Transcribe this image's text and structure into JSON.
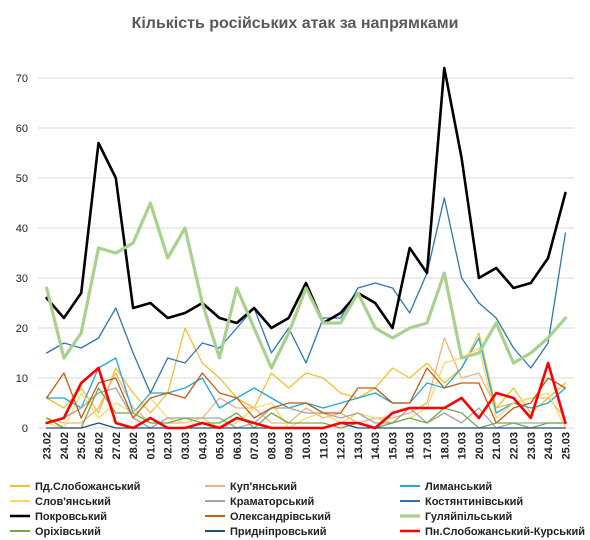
{
  "chart_data": {
    "type": "line",
    "title": "Кількість російських атак за напрямками",
    "xlabel": "",
    "ylabel": "",
    "ylim": [
      0,
      75
    ],
    "yticks": [
      0,
      10,
      20,
      30,
      40,
      50,
      60,
      70
    ],
    "grid": "horizontal",
    "legend_position": "bottom",
    "x": [
      "23.02",
      "24.02",
      "25.02",
      "26.02",
      "27.02",
      "28.02",
      "01.03",
      "02.03",
      "03.03",
      "04.03",
      "05.03",
      "06.03",
      "07.03",
      "08.03",
      "09.03",
      "10.03",
      "11.03",
      "12.03",
      "13.03",
      "14.03",
      "15.03",
      "16.03",
      "17.03",
      "18.03",
      "19.03",
      "20.03",
      "21.03",
      "22.03",
      "23.03",
      "24.03",
      "25.03"
    ],
    "series": [
      {
        "name": "Пд.Слобожанський",
        "color": "#f2c22e",
        "width": 1.3,
        "values": [
          6,
          4,
          8,
          3,
          12,
          7,
          3,
          7,
          20,
          13,
          10,
          6,
          4,
          11,
          8,
          11,
          10,
          7,
          6,
          8,
          12,
          10,
          13,
          9,
          12,
          19,
          4,
          8,
          3,
          6,
          9
        ]
      },
      {
        "name": "Куп'янський",
        "color": "#f2b27a",
        "width": 1.3,
        "values": [
          2,
          1,
          1,
          4,
          11,
          4,
          1,
          1,
          1,
          2,
          6,
          4,
          4,
          1,
          1,
          4,
          2,
          3,
          1,
          2,
          2,
          3,
          5,
          18,
          10,
          11,
          4,
          5,
          6,
          6,
          2
        ]
      },
      {
        "name": "Лиманський",
        "color": "#1fa9e0",
        "width": 1.3,
        "values": [
          6,
          6,
          4,
          12,
          14,
          3,
          7,
          7,
          8,
          10,
          4,
          6,
          8,
          6,
          4,
          5,
          4,
          5,
          6,
          7,
          5,
          5,
          9,
          8,
          12,
          18,
          3,
          5,
          4,
          5,
          8
        ]
      },
      {
        "name": "Слов'янський",
        "color": "#ffd966",
        "width": 1.3,
        "values": [
          1,
          0,
          7,
          2,
          5,
          3,
          6,
          2,
          1,
          2,
          0,
          1,
          4,
          5,
          0,
          2,
          3,
          1,
          3,
          2,
          1,
          2,
          4,
          13,
          14,
          16,
          2,
          5,
          6,
          7,
          0
        ]
      },
      {
        "name": "Краматорський",
        "color": "#a5a5a5",
        "width": 1.3,
        "values": [
          1,
          2,
          4,
          7,
          8,
          2,
          0,
          2,
          2,
          2,
          2,
          0,
          1,
          4,
          4,
          3,
          3,
          2,
          3,
          1,
          1,
          4,
          1,
          3,
          1,
          4,
          0,
          1,
          1,
          1,
          1
        ]
      },
      {
        "name": "Костянтинівський",
        "color": "#2e75b6",
        "width": 1.3,
        "values": [
          15,
          17,
          16,
          18,
          24,
          15,
          7,
          14,
          13,
          17,
          16,
          20,
          24,
          15,
          20,
          13,
          22,
          22,
          28,
          29,
          28,
          23,
          31,
          46,
          30,
          25,
          22,
          16,
          12,
          17,
          39
        ]
      },
      {
        "name": "Покровський",
        "color": "#000000",
        "width": 2.6,
        "values": [
          26,
          22,
          27,
          57,
          50,
          24,
          25,
          22,
          23,
          25,
          22,
          21,
          24,
          20,
          22,
          29,
          21,
          23,
          27,
          25,
          20,
          36,
          31,
          72,
          54,
          30,
          32,
          28,
          29,
          34,
          47
        ]
      },
      {
        "name": "Олександрівський",
        "color": "#c55a11",
        "width": 1.3,
        "values": [
          6,
          11,
          2,
          9,
          10,
          2,
          6,
          7,
          6,
          11,
          7,
          6,
          2,
          4,
          5,
          5,
          3,
          3,
          8,
          8,
          5,
          5,
          12,
          8,
          9,
          9,
          1,
          4,
          5,
          10,
          8
        ]
      },
      {
        "name": "Гуляйпільський",
        "color": "#a9d18e",
        "width": 3.2,
        "values": [
          28,
          14,
          19,
          36,
          35,
          37,
          45,
          34,
          40,
          25,
          14,
          28,
          20,
          12,
          19,
          28,
          21,
          21,
          27,
          20,
          18,
          20,
          21,
          31,
          14,
          15,
          21,
          13,
          15,
          18,
          22
        ]
      },
      {
        "name": "Оріхівський",
        "color": "#70ad47",
        "width": 1.3,
        "values": [
          2,
          0,
          0,
          8,
          3,
          3,
          1,
          1,
          2,
          1,
          1,
          3,
          0,
          3,
          1,
          1,
          1,
          0,
          1,
          0,
          1,
          2,
          1,
          4,
          3,
          0,
          1,
          1,
          0,
          1,
          1
        ]
      },
      {
        "name": "Придніпровський",
        "color": "#1f4e79",
        "width": 1.3,
        "values": [
          0,
          0,
          0,
          1,
          0,
          0,
          0,
          0,
          0,
          0,
          0,
          0,
          0,
          0,
          0,
          0,
          0,
          1,
          0,
          0,
          0,
          0,
          0,
          0,
          0,
          0,
          0,
          0,
          0,
          0,
          0
        ]
      },
      {
        "name": "Пн.Слобожанський-Курський",
        "color": "#ff0000",
        "width": 2.6,
        "values": [
          1,
          2,
          9,
          12,
          1,
          0,
          2,
          0,
          0,
          1,
          0,
          2,
          1,
          0,
          0,
          0,
          0,
          1,
          1,
          0,
          3,
          4,
          4,
          4,
          6,
          2,
          7,
          6,
          2,
          13,
          1
        ]
      }
    ]
  }
}
